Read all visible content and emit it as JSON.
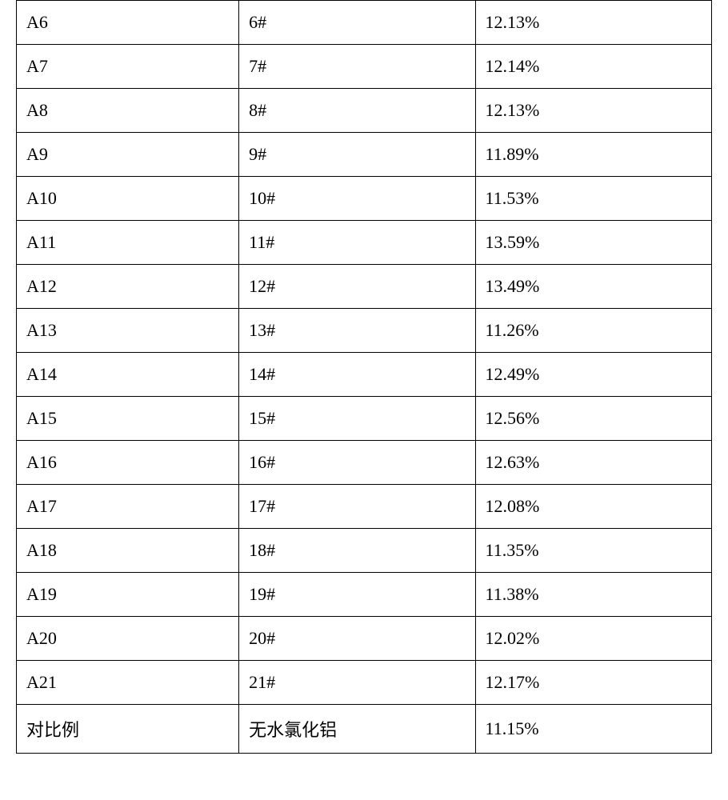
{
  "table": {
    "type": "table",
    "background_color": "#ffffff",
    "border_color": "#000000",
    "text_color": "#000000",
    "font_size_pt": 16,
    "column_widths_pct": [
      32,
      34,
      34
    ],
    "cell_alignment": "left",
    "columns": [
      "col_a",
      "col_b",
      "col_c"
    ],
    "rows": [
      {
        "a": "A6",
        "b": "6#",
        "c": "12.13%"
      },
      {
        "a": "A7",
        "b": "7#",
        "c": "12.14%"
      },
      {
        "a": "A8",
        "b": "8#",
        "c": "12.13%"
      },
      {
        "a": "A9",
        "b": "9#",
        "c": "11.89%"
      },
      {
        "a": "A10",
        "b": "10#",
        "c": "11.53%"
      },
      {
        "a": "A11",
        "b": "11#",
        "c": "13.59%"
      },
      {
        "a": "A12",
        "b": "12#",
        "c": "13.49%"
      },
      {
        "a": "A13",
        "b": "13#",
        "c": "11.26%"
      },
      {
        "a": "A14",
        "b": "14#",
        "c": "12.49%"
      },
      {
        "a": "A15",
        "b": "15#",
        "c": "12.56%"
      },
      {
        "a": "A16",
        "b": "16#",
        "c": "12.63%"
      },
      {
        "a": "A17",
        "b": "17#",
        "c": "12.08%"
      },
      {
        "a": "A18",
        "b": "18#",
        "c": "11.35%"
      },
      {
        "a": "A19",
        "b": "19#",
        "c": "11.38%"
      },
      {
        "a": "A20",
        "b": "20#",
        "c": "12.02%"
      },
      {
        "a": "A21",
        "b": "21#",
        "c": "12.17%"
      },
      {
        "a": "对比例",
        "b": "无水氯化铝",
        "c": "11.15%"
      }
    ]
  }
}
